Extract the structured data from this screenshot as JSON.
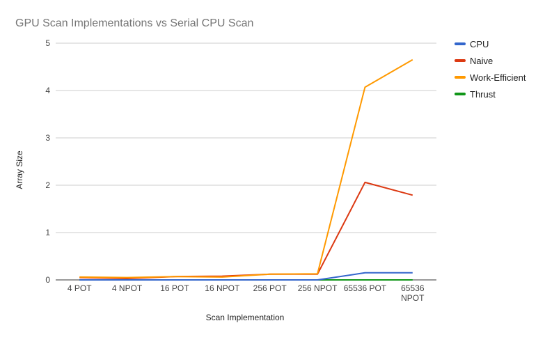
{
  "chart_data": {
    "type": "line",
    "title": "GPU Scan Implementations vs Serial CPU Scan",
    "xlabel": "Scan Implementation",
    "ylabel": "Array Size",
    "categories": [
      "4 POT",
      "4 NPOT",
      "16 POT",
      "16 NPOT",
      "256 POT",
      "256 NPOT",
      "65536 POT",
      "65536 NPOT"
    ],
    "ylim": [
      0,
      5
    ],
    "yticks": [
      0,
      1,
      2,
      3,
      4,
      5
    ],
    "grid": true,
    "legend_position": "right",
    "series": [
      {
        "name": "CPU",
        "color": "#3366cc",
        "values": [
          0.0,
          0.0,
          0.0,
          0.0,
          0.0,
          0.0,
          0.15,
          0.15
        ]
      },
      {
        "name": "Naive",
        "color": "#dc3912",
        "values": [
          0.05,
          0.03,
          0.07,
          0.08,
          0.12,
          0.12,
          2.06,
          1.79
        ]
      },
      {
        "name": "Work-Efficient",
        "color": "#ff9900",
        "values": [
          0.06,
          0.05,
          0.07,
          0.06,
          0.12,
          0.13,
          4.07,
          4.65
        ]
      },
      {
        "name": "Thrust",
        "color": "#109618",
        "values": [
          0.0,
          0.0,
          0.0,
          0.0,
          0.0,
          0.0,
          0.0,
          0.0
        ]
      }
    ]
  }
}
